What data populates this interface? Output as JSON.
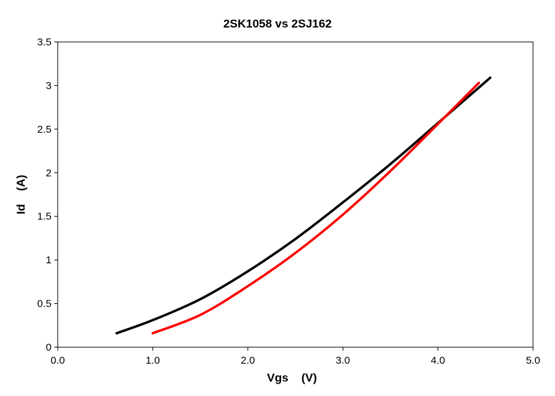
{
  "chart_data": {
    "type": "line",
    "title": "2SK1058 vs 2SJ162",
    "xlabel": "Vgs    (V)",
    "ylabel": "Id    (A)",
    "xlim": [
      0,
      5
    ],
    "ylim": [
      0,
      3.5
    ],
    "x_ticks": [
      "0.0",
      "1.0",
      "2.0",
      "3.0",
      "4.0",
      "5.0"
    ],
    "y_ticks": [
      "0",
      "0.5",
      "1",
      "1.5",
      "2",
      "2.5",
      "3",
      "3.5"
    ],
    "grid": false,
    "legend": "none",
    "series": [
      {
        "color": "#000000",
        "points": [
          [
            0.62,
            0.16
          ],
          [
            1.0,
            0.31
          ],
          [
            1.5,
            0.55
          ],
          [
            2.0,
            0.87
          ],
          [
            2.5,
            1.24
          ],
          [
            3.0,
            1.66
          ],
          [
            3.5,
            2.1
          ],
          [
            4.0,
            2.57
          ],
          [
            4.55,
            3.09
          ]
        ]
      },
      {
        "color": "#ff0000",
        "points": [
          [
            1.0,
            0.16
          ],
          [
            1.5,
            0.37
          ],
          [
            2.0,
            0.7
          ],
          [
            2.5,
            1.08
          ],
          [
            3.0,
            1.52
          ],
          [
            3.5,
            2.02
          ],
          [
            4.0,
            2.56
          ],
          [
            4.43,
            3.03
          ]
        ]
      }
    ]
  }
}
